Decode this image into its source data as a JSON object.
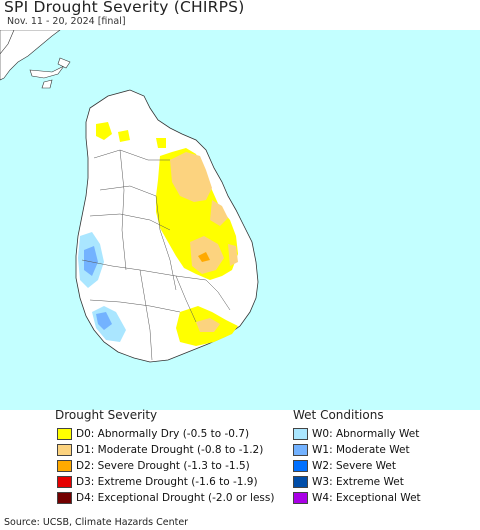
{
  "header": {
    "title": "SPI Drought Severity (CHIRPS)",
    "subtitle": "Nov. 11 - 20, 2024 [final]"
  },
  "map": {
    "ocean_color": "#c3ffff",
    "land_color": "#ffffff",
    "neighbor_land_color": "#ffffff"
  },
  "legend": {
    "drought": {
      "title": "Drought Severity",
      "items": [
        {
          "label": "D0: Abnormally Dry (-0.5 to -0.7)",
          "color": "#ffff00"
        },
        {
          "label": "D1: Moderate Drought (-0.8 to -1.2)",
          "color": "#fcd37f"
        },
        {
          "label": "D2: Severe Drought (-1.3 to -1.5)",
          "color": "#ffaa00"
        },
        {
          "label": "D3: Extreme Drought (-1.6 to -1.9)",
          "color": "#e60000"
        },
        {
          "label": "D4: Exceptional Drought (-2.0 or less)",
          "color": "#730000"
        }
      ]
    },
    "wet": {
      "title": "Wet Conditions",
      "items": [
        {
          "label": "W0: Abnormally Wet",
          "color": "#aae6ff"
        },
        {
          "label": "W1: Moderate Wet",
          "color": "#73b2ff"
        },
        {
          "label": "W2: Severe Wet",
          "color": "#0070ff"
        },
        {
          "label": "W3: Extreme Wet",
          "color": "#004da8"
        },
        {
          "label": "W4: Exceptional Wet",
          "color": "#a900e6"
        }
      ]
    }
  },
  "footer": {
    "source": "Source: UCSB, Climate Hazards Center"
  }
}
